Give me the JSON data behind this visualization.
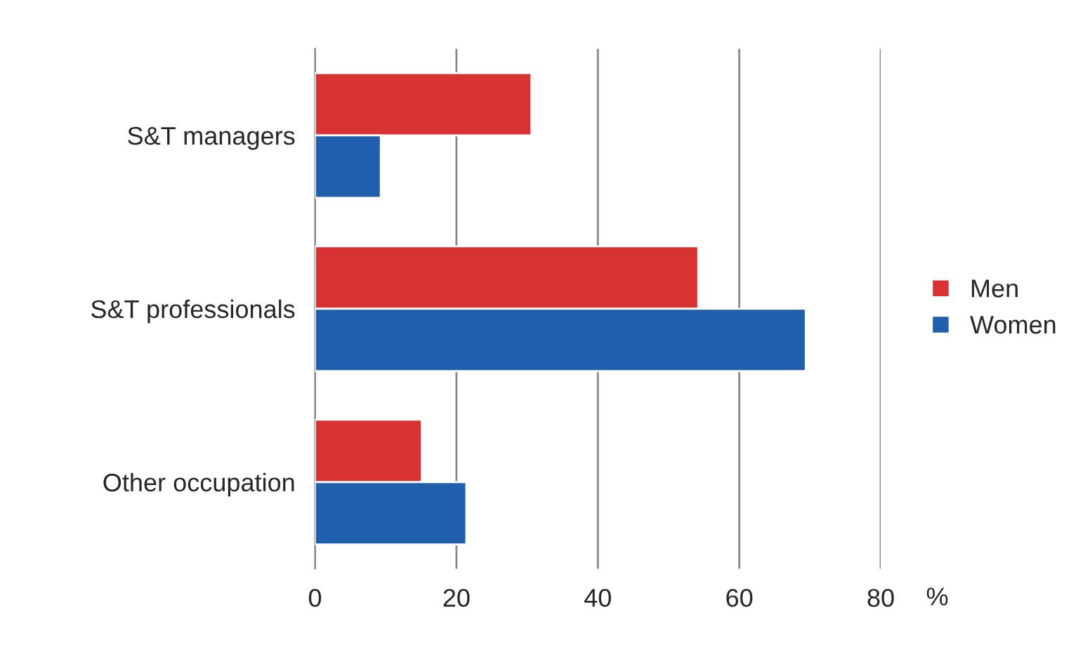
{
  "chart_data": {
    "type": "bar",
    "orientation": "horizontal",
    "categories": [
      "S&T managers",
      "S&T professionals",
      "Other occupation"
    ],
    "series": [
      {
        "name": "Men",
        "color": "#d93232",
        "values": [
          30.6,
          54.2,
          15.1
        ]
      },
      {
        "name": "Women",
        "color": "#1f5fad",
        "values": [
          9.3,
          69.4,
          21.4
        ]
      }
    ],
    "xlabel": "%",
    "xlim": [
      0,
      80
    ],
    "xticks": [
      0,
      20,
      40,
      60,
      80
    ],
    "grid": "x",
    "legend": "right"
  }
}
